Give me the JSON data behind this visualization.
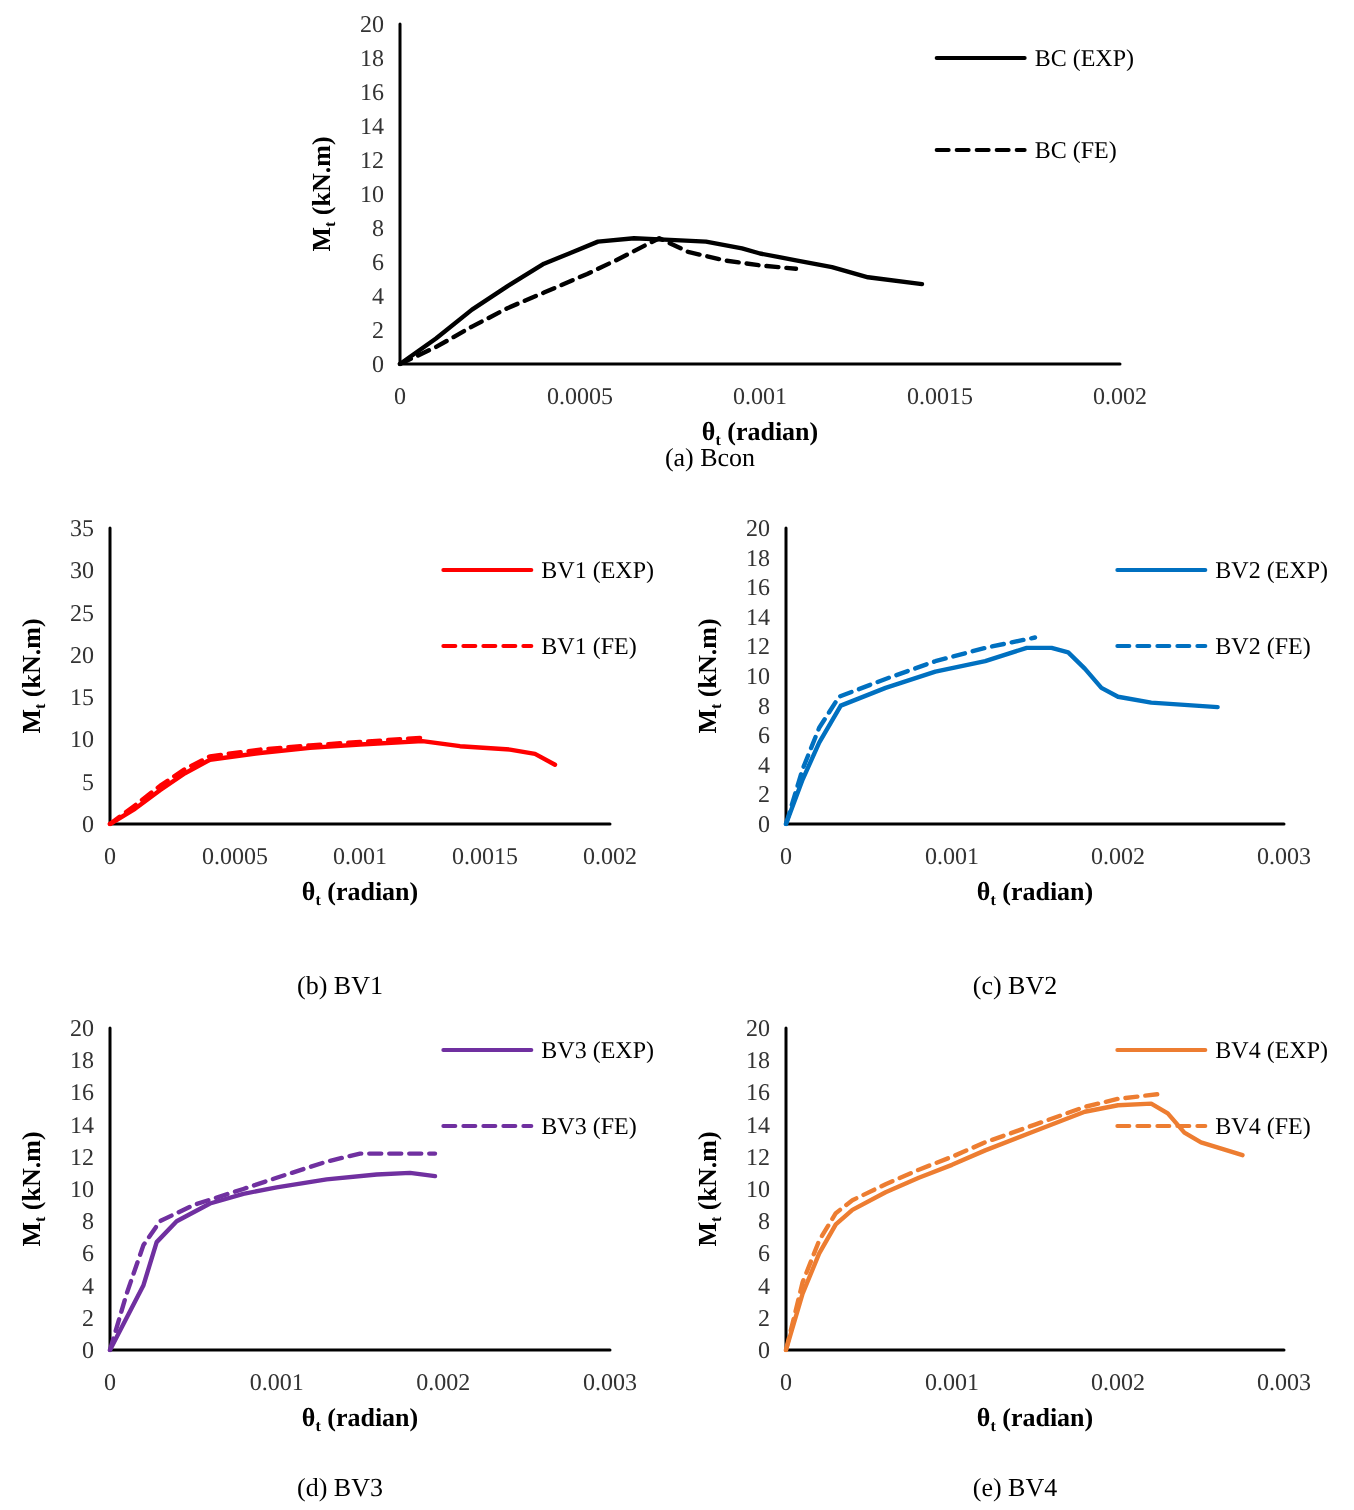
{
  "chart_data": [
    {
      "type": "line",
      "title": "(a) Bcon",
      "xlabel": "θ$_{t}$ (radian)",
      "ylabel": "M$_{t}$ (kN.m)",
      "xlim": [
        0,
        0.002
      ],
      "xticks": [
        0,
        0.0005,
        0.001,
        0.0015,
        0.002
      ],
      "ylim": [
        0,
        20
      ],
      "yticks": [
        0,
        2,
        4,
        6,
        8,
        10,
        12,
        14,
        16,
        18,
        20
      ],
      "grid": false,
      "legend": "top right",
      "marker": "none",
      "series": [
        {
          "name": "BC (EXP)",
          "color": "#000000",
          "line_style": "solid",
          "x": [
            0,
            0.0001,
            0.0002,
            0.0003,
            0.0004,
            0.00047,
            0.00055,
            0.00065,
            0.00075,
            0.00085,
            0.00095,
            0.001,
            0.0011,
            0.0012,
            0.0013,
            0.00145
          ],
          "values": [
            0,
            1.5,
            3.2,
            4.6,
            5.9,
            6.5,
            7.2,
            7.4,
            7.3,
            7.2,
            6.8,
            6.5,
            6.1,
            5.7,
            5.1,
            4.7
          ]
        },
        {
          "name": "BC (FE)",
          "color": "#000000",
          "line_style": "dashed",
          "x": [
            0,
            0.0001,
            0.0002,
            0.0003,
            0.0004,
            0.00052,
            0.0006,
            0.00072,
            0.0008,
            0.0009,
            0.001,
            0.0011
          ],
          "values": [
            0,
            1.0,
            2.2,
            3.3,
            4.2,
            5.3,
            6.1,
            7.4,
            6.6,
            6.1,
            5.8,
            5.6
          ]
        }
      ]
    },
    {
      "type": "line",
      "title": "(b) BV1",
      "xlabel": "θ$_{t}$ (radian)",
      "ylabel": "M$_{t}$ (kN.m)",
      "xlim": [
        0,
        0.002
      ],
      "xticks": [
        0,
        0.0005,
        0.001,
        0.0015,
        0.002
      ],
      "ylim": [
        0,
        35
      ],
      "yticks": [
        0,
        5,
        10,
        15,
        20,
        25,
        30,
        35
      ],
      "grid": false,
      "legend": "top right",
      "marker": "none",
      "series": [
        {
          "name": "BV1 (EXP)",
          "color": "#ff0000",
          "line_style": "solid",
          "x": [
            0,
            0.0001,
            0.0002,
            0.0003,
            0.0004,
            0.0006,
            0.0008,
            0.001,
            0.00125,
            0.0014,
            0.0016,
            0.0017,
            0.00178
          ],
          "values": [
            0,
            1.8,
            4,
            6,
            7.6,
            8.4,
            9,
            9.4,
            9.8,
            9.2,
            8.8,
            8.3,
            7
          ]
        },
        {
          "name": "BV1 (FE)",
          "color": "#ff0000",
          "line_style": "dashed",
          "x": [
            0,
            0.0001,
            0.0002,
            0.0003,
            0.0004,
            0.0006,
            0.0008,
            0.001,
            0.00125
          ],
          "values": [
            0,
            2.2,
            4.5,
            6.5,
            8,
            8.8,
            9.3,
            9.7,
            10.2
          ]
        }
      ]
    },
    {
      "type": "line",
      "title": "(c) BV2",
      "xlabel": "θ$_{t}$ (radian)",
      "ylabel": "M$_{t}$ (kN.m)",
      "xlim": [
        0,
        0.003
      ],
      "xticks": [
        0,
        0.001,
        0.002,
        0.003
      ],
      "ylim": [
        0,
        20
      ],
      "yticks": [
        0,
        2,
        4,
        6,
        8,
        10,
        12,
        14,
        16,
        18,
        20
      ],
      "grid": false,
      "legend": "top right",
      "marker": "none",
      "series": [
        {
          "name": "BV2 (EXP)",
          "color": "#0070c0",
          "line_style": "solid",
          "x": [
            0,
            0.0001,
            0.0002,
            0.00033,
            0.0006,
            0.0009,
            0.0012,
            0.00145,
            0.0016,
            0.0017,
            0.0018,
            0.0019,
            0.002,
            0.0022,
            0.0026
          ],
          "values": [
            0,
            3,
            5.5,
            8,
            9.2,
            10.3,
            11,
            11.9,
            11.9,
            11.6,
            10.5,
            9.2,
            8.6,
            8.2,
            7.9
          ]
        },
        {
          "name": "BV2 (FE)",
          "color": "#0070c0",
          "line_style": "dashed",
          "x": [
            0,
            0.0001,
            0.0002,
            0.00032,
            0.0006,
            0.0009,
            0.0012,
            0.0015
          ],
          "values": [
            0,
            3.7,
            6.5,
            8.6,
            9.8,
            11,
            11.9,
            12.6
          ]
        }
      ]
    },
    {
      "type": "line",
      "title": "(d) BV3",
      "xlabel": "θ$_{t}$ (radian)",
      "ylabel": "M$_{t}$ (kN.m)",
      "xlim": [
        0,
        0.003
      ],
      "xticks": [
        0,
        0.001,
        0.002,
        0.003
      ],
      "ylim": [
        0,
        20
      ],
      "yticks": [
        0,
        2,
        4,
        6,
        8,
        10,
        12,
        14,
        16,
        18,
        20
      ],
      "grid": false,
      "legend": "top right",
      "marker": "none",
      "series": [
        {
          "name": "BV3 (EXP)",
          "color": "#7030a0",
          "line_style": "solid",
          "x": [
            0,
            0.0001,
            0.0002,
            0.00028,
            0.0004,
            0.0006,
            0.0008,
            0.001,
            0.0013,
            0.0016,
            0.0018,
            0.00195
          ],
          "values": [
            0,
            2,
            4,
            6.7,
            8,
            9.1,
            9.7,
            10.1,
            10.6,
            10.9,
            11,
            10.8
          ]
        },
        {
          "name": "BV3 (FE)",
          "color": "#7030a0",
          "line_style": "dashed",
          "x": [
            0,
            0.0001,
            0.0002,
            0.0003,
            0.0005,
            0.0008,
            0.001,
            0.0013,
            0.0015,
            0.0017,
            0.00195
          ],
          "values": [
            0,
            3.5,
            6.5,
            8,
            9,
            10,
            10.7,
            11.7,
            12.2,
            12.2,
            12.2
          ]
        }
      ]
    },
    {
      "type": "line",
      "title": "(e) BV4",
      "xlabel": "θ$_{t}$ (radian)",
      "ylabel": "M$_{t}$ (kN.m)",
      "xlim": [
        0,
        0.003
      ],
      "xticks": [
        0,
        0.001,
        0.002,
        0.003
      ],
      "ylim": [
        0,
        20
      ],
      "yticks": [
        0,
        2,
        4,
        6,
        8,
        10,
        12,
        14,
        16,
        18,
        20
      ],
      "grid": false,
      "legend": "top right",
      "marker": "none",
      "series": [
        {
          "name": "BV4 (EXP)",
          "color": "#ed7d31",
          "line_style": "solid",
          "x": [
            0,
            0.0001,
            0.0002,
            0.0003,
            0.0004,
            0.0006,
            0.0008,
            0.001,
            0.0012,
            0.0015,
            0.0018,
            0.002,
            0.0022,
            0.0023,
            0.0024,
            0.0025,
            0.00275
          ],
          "values": [
            0,
            3.5,
            6,
            7.8,
            8.7,
            9.8,
            10.7,
            11.5,
            12.4,
            13.6,
            14.8,
            15.2,
            15.3,
            14.7,
            13.5,
            12.9,
            12.1
          ]
        },
        {
          "name": "BV4 (FE)",
          "color": "#ed7d31",
          "line_style": "dashed",
          "x": [
            0,
            0.0001,
            0.0002,
            0.0003,
            0.0004,
            0.0006,
            0.0008,
            0.001,
            0.0012,
            0.0015,
            0.0018,
            0.002,
            0.00225
          ],
          "values": [
            0,
            4.2,
            6.8,
            8.5,
            9.3,
            10.3,
            11.2,
            12,
            12.9,
            14,
            15.1,
            15.6,
            15.9
          ]
        }
      ]
    }
  ]
}
